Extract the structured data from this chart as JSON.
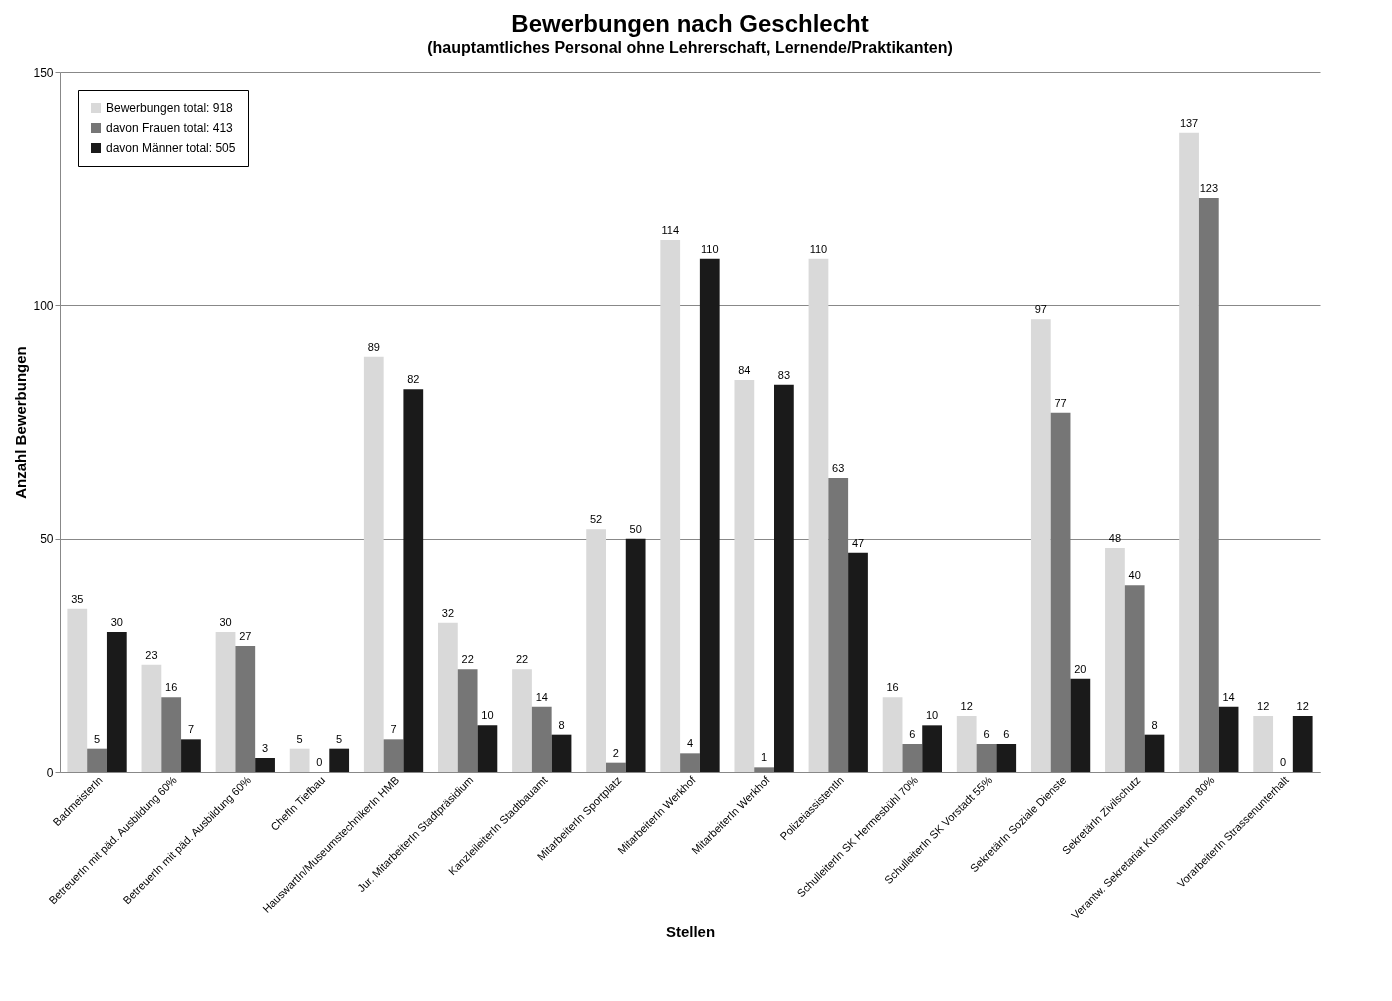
{
  "chart_data": {
    "type": "bar",
    "title": "Bewerbungen nach Geschlecht",
    "subtitle": "(hauptamtliches Personal ohne Lehrerschaft, Lernende/Praktikanten)",
    "xlabel": "Stellen",
    "ylabel": "Anzahl Bewerbungen",
    "categories": [
      "BadmeisterIn",
      "BetreuerIn mit päd. Ausbildung 60%",
      "BetreuerIn mit päd. Ausbildung 60%",
      "ChefIn Tiefbau",
      "HauswartIn/MuseumstechnikerIn HMB",
      "Jur. MitarbeiterIn Stadtpräsidium",
      "KanzleileiterIn Stadtbauamt",
      "MitarbeiterIn Sportplatz",
      "MitarbeiterIn Werkhof",
      "MitarbeiterIn Werkhof",
      "PolizeiassistentIn",
      "SchulleiterIn SK Hermesbühl 70%",
      "SchulleiterIn SK Vorstadt 55%",
      "SekretärIn Soziale Dienste",
      "SekretärIn Zivilschutz",
      "Verantw. Sekretariat Kunstmuseum 80%",
      "VorarbeiterIn Strassenunterhalt"
    ],
    "series": [
      {
        "name": "Bewerbungen total: 918",
        "color": "#d9d9d9",
        "values": [
          35,
          23,
          30,
          5,
          89,
          32,
          22,
          52,
          114,
          84,
          110,
          16,
          12,
          97,
          48,
          137,
          12
        ]
      },
      {
        "name": "davon Frauen total: 413",
        "color": "#767676",
        "values": [
          5,
          16,
          27,
          0,
          7,
          22,
          14,
          2,
          4,
          1,
          63,
          6,
          6,
          77,
          40,
          123,
          0
        ]
      },
      {
        "name": "davon Männer total: 505",
        "color": "#1a1a1a",
        "values": [
          30,
          7,
          3,
          5,
          82,
          10,
          8,
          50,
          110,
          83,
          47,
          10,
          6,
          20,
          8,
          14,
          12
        ]
      }
    ],
    "ylim": [
      0,
      150
    ],
    "yticks": [
      0,
      50,
      100,
      150
    ],
    "grid": "y",
    "legend": "top left",
    "data_labels": true
  }
}
